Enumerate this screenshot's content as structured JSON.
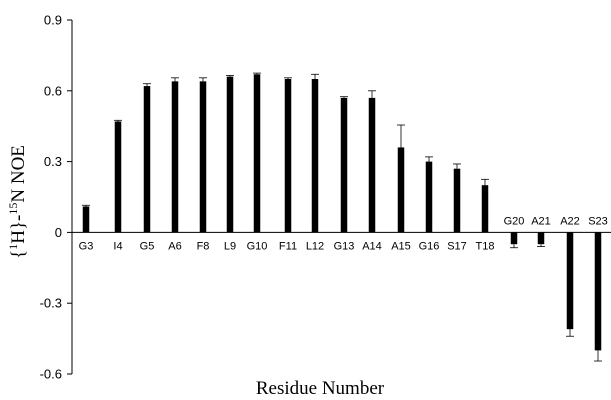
{
  "chart_data": {
    "type": "bar",
    "xlabel": "Residue Number",
    "ylabel": "{1H}-15N NOE",
    "ylabel_parts": {
      "open": "{",
      "sup1": "1",
      "mid": "H}-",
      "sup2": "15",
      "tail": "N NOE"
    },
    "ylim": [
      -0.6,
      0.9
    ],
    "yticks": [
      -0.6,
      -0.3,
      0,
      0.3,
      0.6,
      0.9
    ],
    "ytick_labels": [
      "-0.6",
      "-0.3",
      "0",
      "0.3",
      "0.6",
      "0.9"
    ],
    "grid": false,
    "legend": "none",
    "categories": [
      "G3",
      "I4",
      "G5",
      "A6",
      "F8",
      "L9",
      "G10",
      "F11",
      "L12",
      "G13",
      "A14",
      "A15",
      "G16",
      "S17",
      "T18",
      "G20",
      "A21",
      "A22",
      "S23"
    ],
    "values": [
      0.11,
      0.47,
      0.62,
      0.64,
      0.64,
      0.66,
      0.67,
      0.65,
      0.65,
      0.57,
      0.57,
      0.36,
      0.3,
      0.27,
      0.2,
      -0.05,
      -0.05,
      -0.41,
      -0.5
    ],
    "errors": [
      0.005,
      0.005,
      0.01,
      0.015,
      0.015,
      0.005,
      0.005,
      0.005,
      0.02,
      0.005,
      0.03,
      0.095,
      0.02,
      0.02,
      0.025,
      0.015,
      0.01,
      0.03,
      0.045
    ],
    "bar_color": "#000000"
  }
}
